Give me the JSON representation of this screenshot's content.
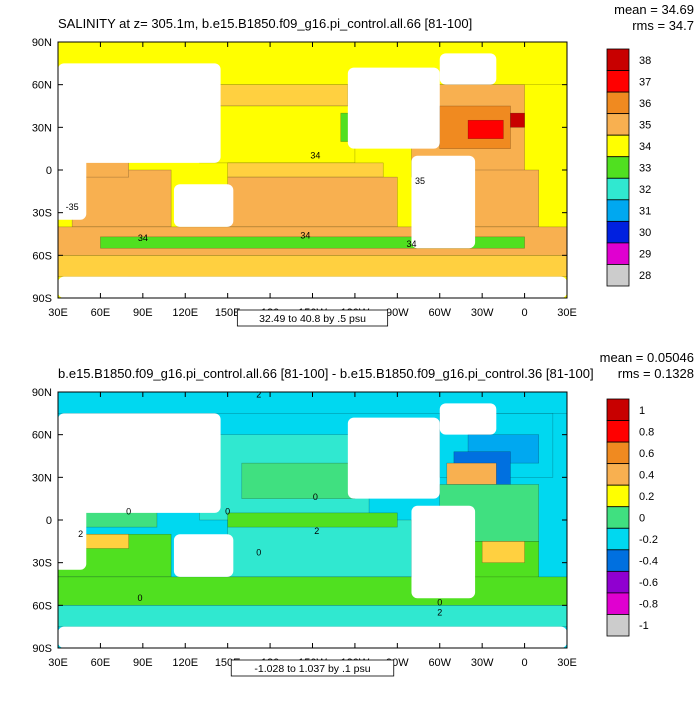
{
  "colors": {
    "ocean_ramp": [
      "#6e6e6e",
      "#cccccc",
      "#e000d0",
      "#9000d0",
      "#0020e0",
      "#0070e0",
      "#00a8f0",
      "#00d8f0",
      "#30e8d0",
      "#40e080",
      "#50e020",
      "#ffff00",
      "#ffd040",
      "#f8b050",
      "#f08a20",
      "#ff5020",
      "#ff0000",
      "#c80000"
    ],
    "land": "#ffffff",
    "contour": "#000000"
  },
  "chart_data": [
    {
      "type": "heatmap",
      "title": "SALINITY at z= 305.1m, b.e15.B1850.f09_g16.pi_control.all.66 [81-100]",
      "stats": [
        "mean = 34.69",
        "rms = 34.7"
      ],
      "xlabel": "",
      "ylabel": "",
      "xlim": [
        30,
        390
      ],
      "ylim": [
        -90,
        90
      ],
      "x_ticks": [
        "30E",
        "60E",
        "90E",
        "120E",
        "150E",
        "180",
        "150W",
        "120W",
        "90W",
        "60W",
        "30W",
        "0",
        "30E"
      ],
      "y_ticks": [
        "90N",
        "60N",
        "30N",
        "0",
        "30S",
        "60S",
        "90S"
      ],
      "colorbar_labels": [
        "38",
        "37",
        "36",
        "35",
        "34",
        "33",
        "32",
        "31",
        "30",
        "29",
        "28"
      ],
      "colorbar_index": [
        17,
        16,
        14,
        13,
        11,
        10,
        8,
        6,
        4,
        2,
        1
      ],
      "contour_labels": [
        {
          "text": "34",
          "lon": 212,
          "lat": 8
        },
        {
          "text": "35",
          "lon": 286,
          "lat": -10
        },
        {
          "text": "-35",
          "lon": 40,
          "lat": -28
        },
        {
          "text": "34",
          "lon": 90,
          "lat": -50
        },
        {
          "text": "34",
          "lon": 205,
          "lat": -48
        },
        {
          "text": "34",
          "lon": 280,
          "lat": -54
        }
      ],
      "range_caption": "32.49 to 40.8 by .5 psu",
      "field": [
        {
          "lat": [
            60,
            90
          ],
          "lon": [
            30,
            390
          ],
          "idx": 11
        },
        {
          "lat": [
            45,
            60
          ],
          "lon": [
            140,
            235
          ],
          "idx": 12
        },
        {
          "lat": [
            5,
            45
          ],
          "lon": [
            130,
            240
          ],
          "idx": 11
        },
        {
          "lat": [
            20,
            40
          ],
          "lon": [
            230,
            250
          ],
          "idx": 10
        },
        {
          "lat": [
            -5,
            5
          ],
          "lon": [
            150,
            260
          ],
          "idx": 12
        },
        {
          "lat": [
            -40,
            -5
          ],
          "lon": [
            150,
            270
          ],
          "idx": 13
        },
        {
          "lat": [
            -40,
            0
          ],
          "lon": [
            40,
            110
          ],
          "idx": 13
        },
        {
          "lat": [
            -5,
            30
          ],
          "lon": [
            45,
            80
          ],
          "idx": 13
        },
        {
          "lat": [
            20,
            30
          ],
          "lon": [
            52,
            66
          ],
          "idx": 14
        },
        {
          "lat": [
            -5,
            60
          ],
          "lon": [
            280,
            360
          ],
          "idx": 13
        },
        {
          "lat": [
            15,
            45
          ],
          "lon": [
            300,
            350
          ],
          "idx": 14
        },
        {
          "lat": [
            22,
            35
          ],
          "lon": [
            320,
            345
          ],
          "idx": 16
        },
        {
          "lat": [
            30,
            40
          ],
          "lon": [
            350,
            360
          ],
          "idx": 17
        },
        {
          "lat": [
            -40,
            0
          ],
          "lon": [
            320,
            370
          ],
          "idx": 13
        },
        {
          "lat": [
            -60,
            -40
          ],
          "lon": [
            30,
            390
          ],
          "idx": 13
        },
        {
          "lat": [
            -55,
            -47
          ],
          "lon": [
            60,
            360
          ],
          "idx": 10
        },
        {
          "lat": [
            -75,
            -60
          ],
          "lon": [
            30,
            390
          ],
          "idx": 12
        }
      ],
      "land": [
        {
          "lat": [
            5,
            75
          ],
          "lon": [
            30,
            145
          ]
        },
        {
          "lat": [
            -35,
            35
          ],
          "lon": [
            10,
            50
          ]
        },
        {
          "lat": [
            -40,
            -10
          ],
          "lon": [
            112,
            154
          ]
        },
        {
          "lat": [
            15,
            72
          ],
          "lon": [
            235,
            300
          ]
        },
        {
          "lat": [
            -55,
            10
          ],
          "lon": [
            280,
            325
          ]
        },
        {
          "lat": [
            60,
            82
          ],
          "lon": [
            300,
            340
          ]
        },
        {
          "lat": [
            -90,
            -75
          ],
          "lon": [
            30,
            390
          ]
        }
      ]
    },
    {
      "type": "heatmap",
      "title": "b.e15.B1850.f09_g16.pi_control.all.66 [81-100] - b.e15.B1850.f09_g16.pi_control.36 [81-100]",
      "stats": [
        "mean = 0.05046",
        "rms = 0.1328"
      ],
      "xlabel": "",
      "ylabel": "",
      "xlim": [
        30,
        390
      ],
      "ylim": [
        -90,
        90
      ],
      "x_ticks": [
        "30E",
        "60E",
        "90E",
        "120E",
        "150E",
        "180",
        "150W",
        "120W",
        "90W",
        "60W",
        "30W",
        "0",
        "30E"
      ],
      "y_ticks": [
        "90N",
        "60N",
        "30N",
        "0",
        "30S",
        "60S",
        "90S"
      ],
      "colorbar_labels": [
        "1",
        "0.8",
        "0.6",
        "0.4",
        "0.2",
        "0",
        "-0.2",
        "-0.4",
        "-0.6",
        "-0.8",
        "-1"
      ],
      "colorbar_index": [
        17,
        16,
        14,
        13,
        11,
        9,
        7,
        5,
        3,
        2,
        1
      ],
      "contour_labels": [
        {
          "text": "2",
          "lon": 172,
          "lat": 86
        },
        {
          "text": "0",
          "lon": 212,
          "lat": 14
        },
        {
          "text": "0",
          "lon": 150,
          "lat": 4
        },
        {
          "text": "2",
          "lon": 213,
          "lat": -10
        },
        {
          "text": "0",
          "lon": 80,
          "lat": 4
        },
        {
          "text": "2",
          "lon": 46,
          "lat": -12
        },
        {
          "text": "0",
          "lon": 172,
          "lat": -25
        },
        {
          "text": "0",
          "lon": 88,
          "lat": -57
        },
        {
          "text": "0",
          "lon": 300,
          "lat": -60
        },
        {
          "text": "2",
          "lon": 300,
          "lat": -67
        }
      ],
      "range_caption": "-1.028 to 1.037 by .1 psu",
      "field": [
        {
          "lat": [
            75,
            90
          ],
          "lon": [
            30,
            390
          ],
          "idx": 7
        },
        {
          "lat": [
            30,
            75
          ],
          "lon": [
            300,
            380
          ],
          "idx": 7
        },
        {
          "lat": [
            40,
            60
          ],
          "lon": [
            320,
            370
          ],
          "idx": 6
        },
        {
          "lat": [
            20,
            48
          ],
          "lon": [
            310,
            350
          ],
          "idx": 5
        },
        {
          "lat": [
            25,
            40
          ],
          "lon": [
            305,
            340
          ],
          "idx": 13
        },
        {
          "lat": [
            -15,
            25
          ],
          "lon": [
            300,
            370
          ],
          "idx": 9
        },
        {
          "lat": [
            -45,
            -15
          ],
          "lon": [
            320,
            370
          ],
          "idx": 10
        },
        {
          "lat": [
            -30,
            -15
          ],
          "lon": [
            330,
            360
          ],
          "idx": 12
        },
        {
          "lat": [
            0,
            60
          ],
          "lon": [
            130,
            250
          ],
          "idx": 8
        },
        {
          "lat": [
            15,
            40
          ],
          "lon": [
            160,
            240
          ],
          "idx": 9
        },
        {
          "lat": [
            -40,
            0
          ],
          "lon": [
            150,
            280
          ],
          "idx": 8
        },
        {
          "lat": [
            -5,
            5
          ],
          "lon": [
            150,
            270
          ],
          "idx": 10
        },
        {
          "lat": [
            -40,
            -10
          ],
          "lon": [
            30,
            110
          ],
          "idx": 10
        },
        {
          "lat": [
            -20,
            -10
          ],
          "lon": [
            40,
            80
          ],
          "idx": 12
        },
        {
          "lat": [
            -5,
            25
          ],
          "lon": [
            45,
            100
          ],
          "idx": 9
        },
        {
          "lat": [
            -60,
            -40
          ],
          "lon": [
            30,
            390
          ],
          "idx": 10
        },
        {
          "lat": [
            -75,
            -60
          ],
          "lon": [
            30,
            390
          ],
          "idx": 8
        }
      ],
      "land": [
        {
          "lat": [
            5,
            75
          ],
          "lon": [
            30,
            145
          ]
        },
        {
          "lat": [
            -35,
            35
          ],
          "lon": [
            10,
            50
          ]
        },
        {
          "lat": [
            -40,
            -10
          ],
          "lon": [
            112,
            154
          ]
        },
        {
          "lat": [
            15,
            72
          ],
          "lon": [
            235,
            300
          ]
        },
        {
          "lat": [
            -55,
            10
          ],
          "lon": [
            280,
            325
          ]
        },
        {
          "lat": [
            60,
            82
          ],
          "lon": [
            300,
            340
          ]
        },
        {
          "lat": [
            -90,
            -75
          ],
          "lon": [
            30,
            390
          ]
        }
      ]
    }
  ]
}
